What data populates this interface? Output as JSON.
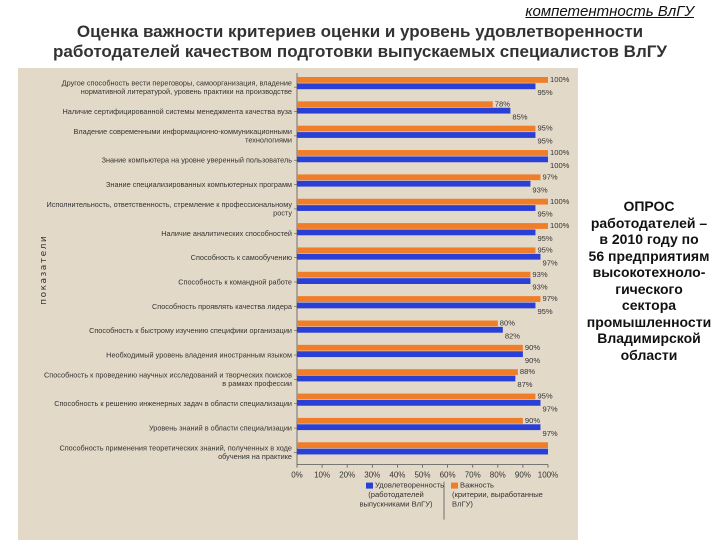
{
  "header": {
    "corner_text": "компетентность ВлГУ",
    "title_line1": "Оценка важности критериев оценки и уровень удовлетворенности",
    "title_line2": "работодателей качеством подготовки выпускаемых специалистов ВлГУ"
  },
  "side_note": {
    "lines": [
      "ОПРОС",
      "работодателей –",
      "в 2010 году по",
      "56 предприятиям",
      "высокотехноло-",
      "гического",
      "сектора",
      "промышленности",
      "Владимирской",
      "области"
    ]
  },
  "colors": {
    "importance": "#f07d28",
    "satisfaction": "#2a3fd6",
    "panel": "#e3d9c8"
  },
  "chart_data": {
    "type": "bar",
    "orientation": "horizontal",
    "ylabel": "показатели",
    "xlim": [
      0,
      100
    ],
    "xticks": [
      "0%",
      "10%",
      "20%",
      "30%",
      "40%",
      "50%",
      "60%",
      "70%",
      "80%",
      "90%",
      "100%"
    ],
    "legend_position": "bottom",
    "categories": [
      [
        "Другое способность вести переговоры, самоорганизация, владение",
        "нормативной литературой, уровень практики на производстве"
      ],
      [
        "Наличие сертифицированной системы менеджмента качества вуза"
      ],
      [
        "Владение современными информационно-коммуникационными",
        "технологиями"
      ],
      [
        "Знание компьютера на уровне уверенный пользователь"
      ],
      [
        "Знание специализированных компьютерных программ"
      ],
      [
        "Исполнительность, ответственность, стремление к профессиональному",
        "росту"
      ],
      [
        "Наличие аналитических способностей"
      ],
      [
        "Способность к самообучению"
      ],
      [
        "Способность к командной работе"
      ],
      [
        "Способность проявлять качества лидера"
      ],
      [
        "Способность к быстрому изучению специфики организации"
      ],
      [
        "Необходимый уровень владения иностранным языком"
      ],
      [
        "Способность к проведению научных исследований и творческих поисков",
        "в рамках профессии"
      ],
      [
        "Способность к решению инженерных задач в области специализации"
      ],
      [
        "Уровень знаний в области специализации"
      ],
      [
        "Способность применения теоретических знаний, полученных в ходе",
        "обучения на практике"
      ]
    ],
    "series": [
      {
        "name": [
          "Важность",
          "(критерии, выработанные",
          "ВлГУ)"
        ],
        "values": [
          100,
          78,
          95,
          100,
          97,
          100,
          100,
          95,
          93,
          97,
          80,
          90,
          88,
          95,
          90,
          100
        ],
        "labels": [
          "100%",
          "78%",
          "95%",
          "100%",
          "97%",
          "100%",
          "100%",
          "95%",
          "93%",
          "97%",
          "80%",
          "90%",
          "88%",
          "95%",
          "90%",
          ""
        ]
      },
      {
        "name": [
          "Удовлетворенность",
          "(работодателей",
          "выпускниками ВлГУ)"
        ],
        "values": [
          95,
          85,
          95,
          100,
          93,
          95,
          95,
          97,
          93,
          95,
          82,
          90,
          87,
          97,
          97,
          100
        ],
        "labels": [
          "95%",
          "85%",
          "95%",
          "100%",
          "93%",
          "95%",
          "95%",
          "97%",
          "93%",
          "95%",
          "82%",
          "90%",
          "87%",
          "97%",
          "97%",
          ""
        ]
      }
    ]
  }
}
